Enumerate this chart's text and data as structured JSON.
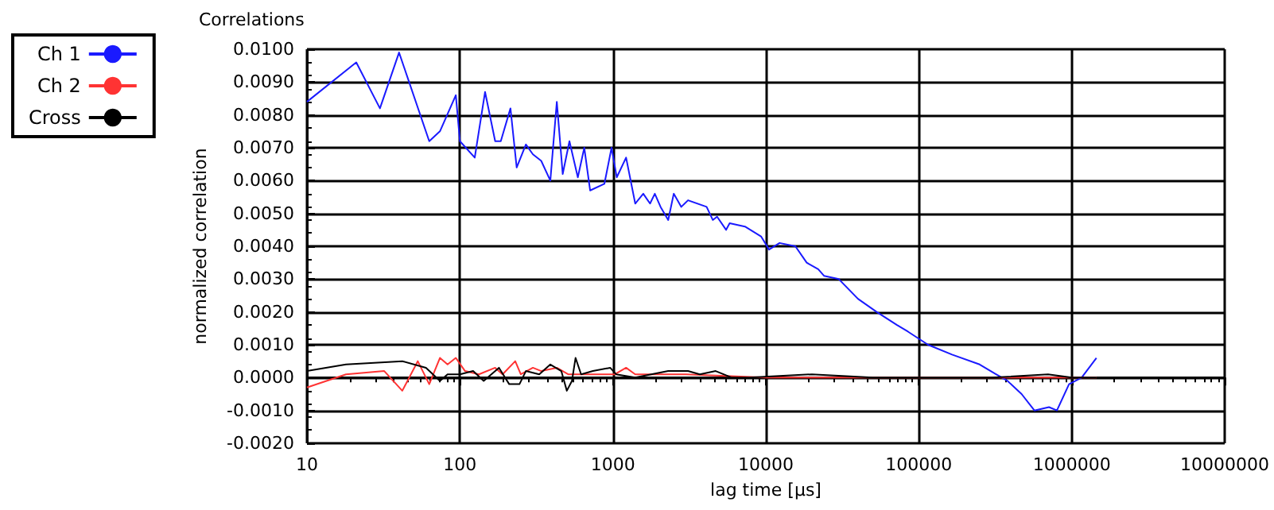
{
  "chart_data": {
    "type": "line",
    "title": "Correlations",
    "xlabel": "lag time [µs]",
    "ylabel": "normalized correlation",
    "log": "x",
    "grid": true,
    "legend": "top left",
    "marker": "none",
    "line_style": "solid",
    "xlim": [
      10,
      10000000
    ],
    "xticks": [
      10,
      100,
      1000,
      10000,
      100000,
      1000000,
      10000000
    ],
    "ylim": [
      -0.002,
      0.01
    ],
    "yticks": [
      {
        "value": -0.002,
        "label": "-0.0020"
      },
      {
        "value": -0.001,
        "label": "-0.0010"
      },
      {
        "value": 0,
        "label": "0.0000"
      },
      {
        "value": 0.001,
        "label": "0.0010"
      },
      {
        "value": 0.002,
        "label": "0.0020"
      },
      {
        "value": 0.003,
        "label": "0.0030"
      },
      {
        "value": 0.004,
        "label": "0.0040"
      },
      {
        "value": 0.005,
        "label": "0.0050"
      },
      {
        "value": 0.006,
        "label": "0.0060"
      },
      {
        "value": 0.007,
        "label": "0.0070"
      },
      {
        "value": 0.008,
        "label": "0.0080"
      },
      {
        "value": 0.009,
        "label": "0.0090"
      },
      {
        "value": 0.01,
        "label": "0.0100"
      }
    ],
    "series": [
      {
        "name": "Ch 1",
        "color": "#1a1aff",
        "x": [
          10,
          21,
          30,
          40,
          63,
          74,
          94,
          100,
          125,
          146,
          170,
          185,
          214,
          235,
          270,
          300,
          340,
          390,
          430,
          470,
          520,
          590,
          650,
          710,
          880,
          980,
          1060,
          1220,
          1400,
          1580,
          1750,
          1880,
          2050,
          2300,
          2500,
          2800,
          3100,
          4100,
          4500,
          4800,
          5500,
          5800,
          7300,
          9300,
          10500,
          12300,
          15600,
          18500,
          22000,
          24000,
          30000,
          40000,
          53000,
          72000,
          85000,
          115000,
          165000,
          250000,
          320000,
          380000,
          470000,
          570000,
          710000,
          800000,
          960000,
          1160000,
          1450000
        ],
        "values": [
          0.0084,
          0.0096,
          0.0082,
          0.0099,
          0.0072,
          0.0075,
          0.0086,
          0.0072,
          0.0067,
          0.0087,
          0.0072,
          0.0072,
          0.0082,
          0.0064,
          0.0071,
          0.0068,
          0.0066,
          0.006,
          0.0084,
          0.0062,
          0.0072,
          0.0061,
          0.007,
          0.0057,
          0.0059,
          0.007,
          0.0061,
          0.0067,
          0.0053,
          0.0056,
          0.0053,
          0.0056,
          0.0052,
          0.0048,
          0.0056,
          0.0052,
          0.0054,
          0.0052,
          0.0048,
          0.0049,
          0.0045,
          0.0047,
          0.0046,
          0.0043,
          0.0039,
          0.0041,
          0.004,
          0.0035,
          0.0033,
          0.0031,
          0.003,
          0.0024,
          0.002,
          0.0016,
          0.0014,
          0.001,
          0.0007,
          0.0004,
          0.0001,
          -0.0001,
          -0.0005,
          -0.001,
          -0.0009,
          -0.001,
          -0.0002,
          0.0,
          0.0006
        ]
      },
      {
        "name": "Ch 2",
        "color": "#ff3333",
        "x": [
          10,
          18,
          32,
          42,
          53,
          63,
          74,
          83,
          94,
          108,
          133,
          170,
          190,
          230,
          250,
          300,
          340,
          430,
          510,
          600,
          760,
          1030,
          1220,
          1400,
          3000,
          10000,
          100000,
          1000000,
          1450000
        ],
        "values": [
          -0.0003,
          0.0001,
          0.0002,
          -0.0004,
          0.0005,
          -0.0002,
          0.0006,
          0.0004,
          0.0006,
          0.0002,
          0.0001,
          0.0003,
          0.0001,
          0.0005,
          0.0001,
          0.0003,
          0.0002,
          0.0003,
          0.0001,
          0.0001,
          0.0001,
          0.0001,
          0.0003,
          0.0001,
          0.0001,
          0.0,
          0.0,
          0.0,
          0.0
        ]
      },
      {
        "name": "Cross",
        "color": "#000000",
        "x": [
          10,
          18,
          42,
          60,
          74,
          83,
          100,
          122,
          143,
          180,
          210,
          245,
          270,
          330,
          390,
          460,
          500,
          540,
          570,
          620,
          740,
          960,
          1050,
          1400,
          2300,
          3100,
          3700,
          4700,
          6000,
          7800,
          20000,
          50000,
          150000,
          300000,
          700000,
          1000000,
          1450000
        ],
        "values": [
          0.0002,
          0.0004,
          0.0005,
          0.0003,
          -0.0001,
          0.0001,
          0.0001,
          0.0002,
          -0.0001,
          0.0003,
          -0.0002,
          -0.0002,
          0.0002,
          0.0001,
          0.0004,
          0.0002,
          -0.0004,
          -0.0001,
          0.0006,
          0.0001,
          0.0002,
          0.0003,
          0.0001,
          0.0,
          0.0002,
          0.0002,
          0.0001,
          0.0002,
          0.0,
          0.0,
          0.0001,
          0.0,
          0.0,
          0.0,
          0.0001,
          0.0,
          0.0
        ]
      }
    ]
  }
}
